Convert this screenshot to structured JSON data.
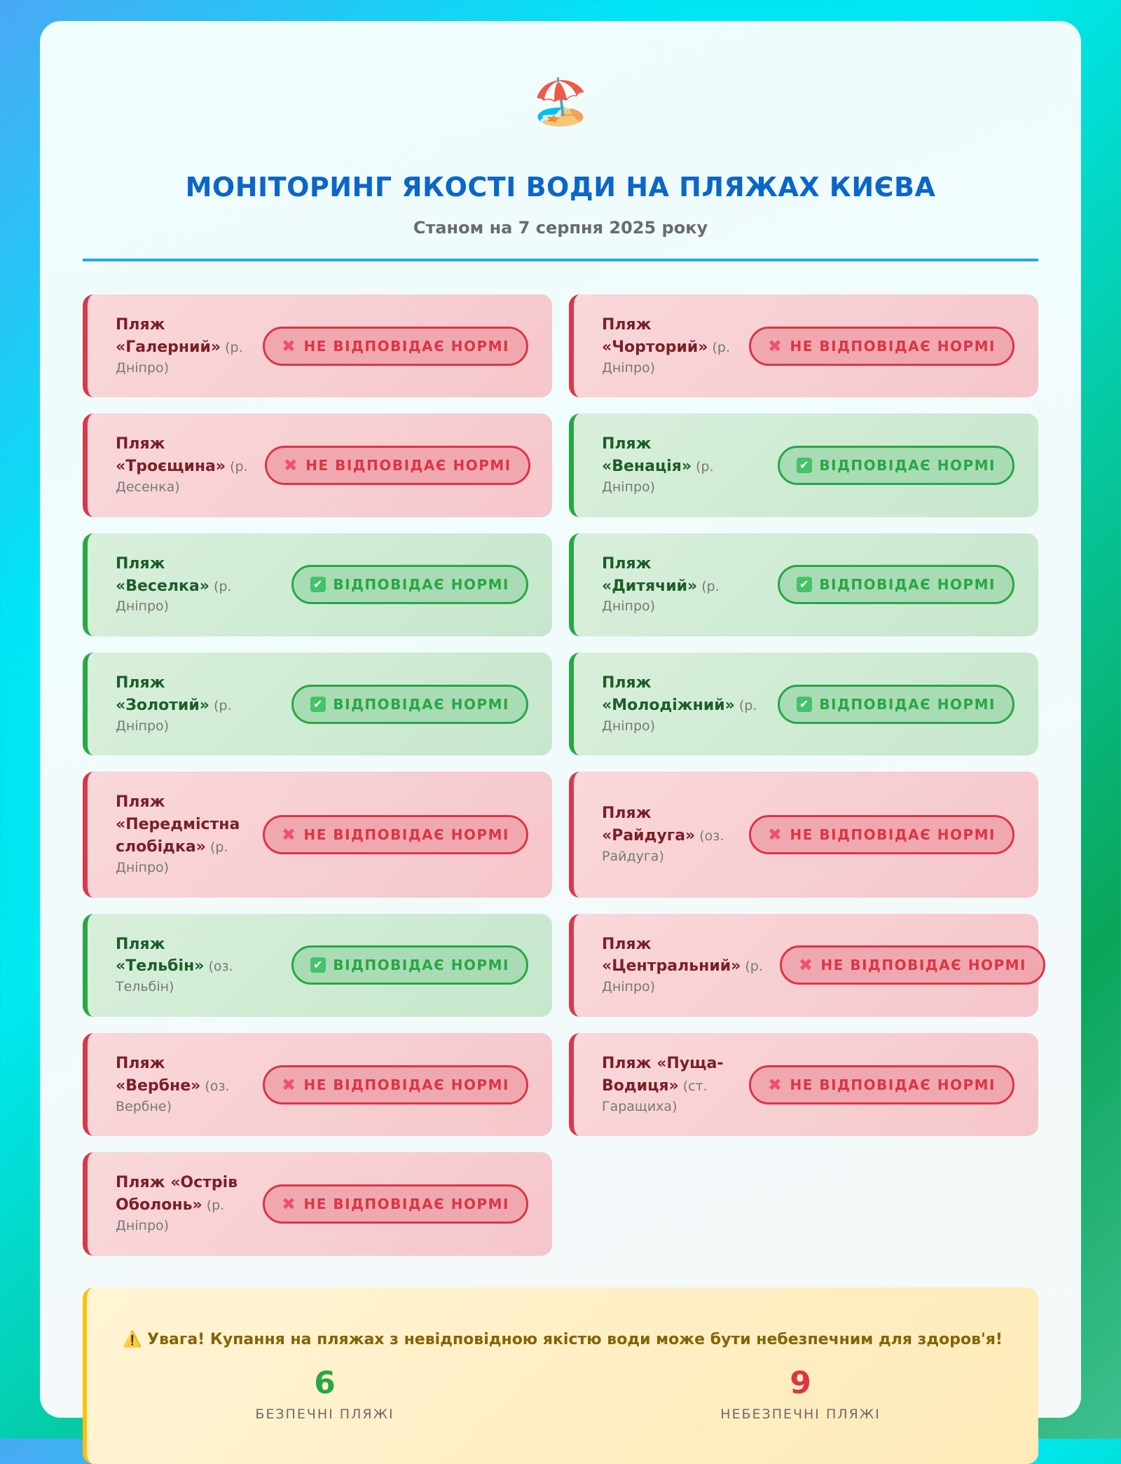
{
  "header": {
    "icon": "beach-umbrella-icon",
    "emoji": "🏖️",
    "title": "МОНІТОРИНГ ЯКОСТІ ВОДИ НА ПЛЯЖАХ КИЄВА",
    "subtitle": "Станом на 7 серпня 2025 року"
  },
  "labels": {
    "bad": "НЕ ВІДПОВІДАЄ НОРМІ",
    "good": "ВІДПОВІДАЄ НОРМІ"
  },
  "colors": {
    "accent": "#0a66c9",
    "bad": "#dc3545",
    "good": "#28a745",
    "warning": "#ffc107"
  },
  "beaches": [
    {
      "name": "Пляж «Галерний»",
      "location": "(р. Дніпро)",
      "status": "bad"
    },
    {
      "name": "Пляж «Чорторий»",
      "location": "(р. Дніпро)",
      "status": "bad"
    },
    {
      "name": "Пляж «Троєщина»",
      "location": "(р. Десенка)",
      "status": "bad"
    },
    {
      "name": "Пляж «Венація»",
      "location": "(р. Дніпро)",
      "status": "good"
    },
    {
      "name": "Пляж «Веселка»",
      "location": "(р. Дніпро)",
      "status": "good"
    },
    {
      "name": "Пляж «Дитячий»",
      "location": "(р. Дніпро)",
      "status": "good"
    },
    {
      "name": "Пляж «Золотий»",
      "location": "(р. Дніпро)",
      "status": "good"
    },
    {
      "name": "Пляж «Молодіжний»",
      "location": "(р. Дніпро)",
      "status": "good"
    },
    {
      "name": "Пляж «Передмістна слобідка»",
      "location": "(р. Дніпро)",
      "status": "bad"
    },
    {
      "name": "Пляж «Райдуга»",
      "location": "(оз. Райдуга)",
      "status": "bad"
    },
    {
      "name": "Пляж «Тельбін»",
      "location": "(оз. Тельбін)",
      "status": "good"
    },
    {
      "name": "Пляж «Центральний»",
      "location": "(р. Дніпро)",
      "status": "bad"
    },
    {
      "name": "Пляж «Вербне»",
      "location": "(оз. Вербне)",
      "status": "bad"
    },
    {
      "name": "Пляж «Пуща-Водиця»",
      "location": "(ст. Гаращиха)",
      "status": "bad"
    },
    {
      "name": "Пляж «Острів Оболонь»",
      "location": "(р. Дніпро)",
      "status": "bad"
    }
  ],
  "summary": {
    "warning": "Увага! Купання на пляжах з невідповідною якістю води може бути небезпечним для здоров'я!",
    "safe_count": "6",
    "safe_label": "БЕЗПЕЧНІ ПЛЯЖІ",
    "unsafe_count": "9",
    "unsafe_label": "НЕБЕЗПЕЧНІ ПЛЯЖІ"
  }
}
